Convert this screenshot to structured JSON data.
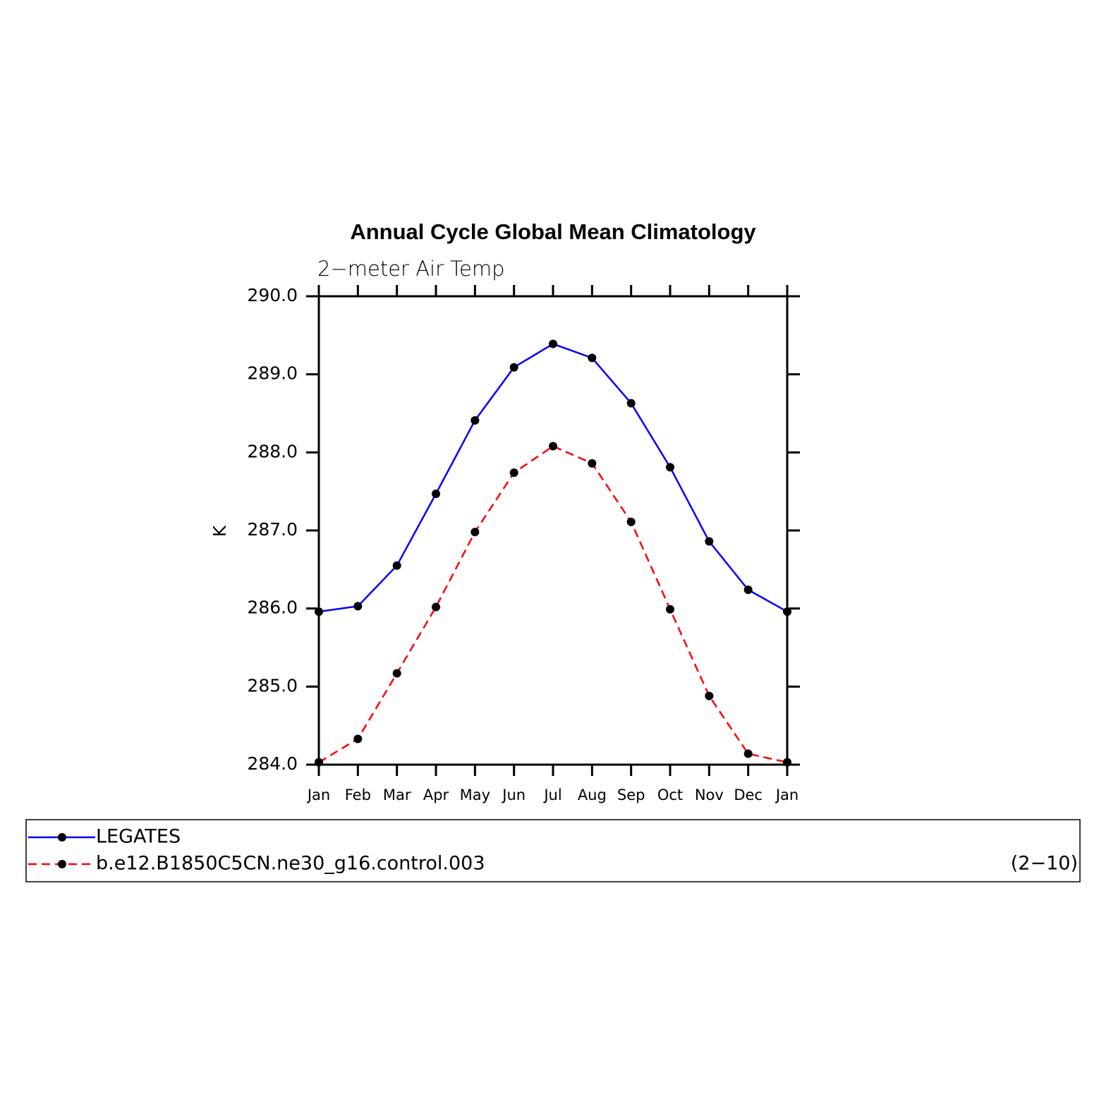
{
  "chart_data": {
    "type": "line",
    "title": "Annual Cycle Global Mean Climatology",
    "subtitle": "2−meter Air Temp",
    "y_label": "K",
    "annotation": "(2−10)",
    "categories": [
      "Jan",
      "Feb",
      "Mar",
      "Apr",
      "May",
      "Jun",
      "Jul",
      "Aug",
      "Sep",
      "Oct",
      "Nov",
      "Dec",
      "Jan"
    ],
    "series": [
      {
        "name": "LEGATES",
        "color": "#0000ff",
        "line_style": "solid",
        "values": [
          285.96,
          286.03,
          286.55,
          287.47,
          288.41,
          289.09,
          289.39,
          289.21,
          288.63,
          287.81,
          286.86,
          286.24,
          285.96
        ]
      },
      {
        "name": "b.e12.B1850C5CN.ne30_g16.control.003",
        "color": "#ff0000",
        "line_style": "dashed",
        "values": [
          284.03,
          284.33,
          285.17,
          286.02,
          286.98,
          287.74,
          288.08,
          287.86,
          287.11,
          285.99,
          284.88,
          284.14,
          284.03
        ]
      }
    ],
    "marker_color": "#000000",
    "ylim": [
      284,
      290
    ],
    "yticks": [
      {
        "value": 284,
        "label": "284.0"
      },
      {
        "value": 285,
        "label": "285.0"
      },
      {
        "value": 286,
        "label": "286.0"
      },
      {
        "value": 287,
        "label": "287.0"
      },
      {
        "value": 288,
        "label": "288.0"
      },
      {
        "value": 289,
        "label": "289.0"
      },
      {
        "value": 290,
        "label": "290.0"
      }
    ],
    "grid": false
  }
}
